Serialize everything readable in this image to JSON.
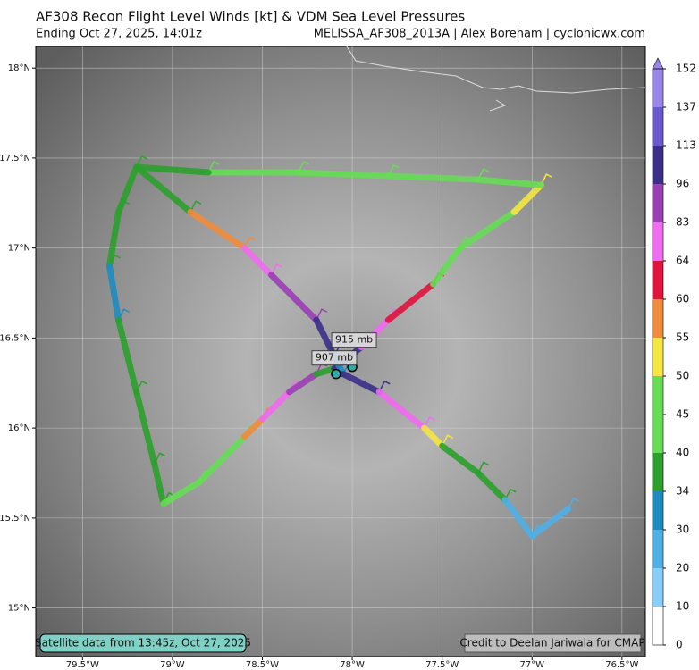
{
  "chart_data": {
    "type": "track",
    "title": "AF308 Recon Flight Level Winds [kt] & VDM Sea Level Pressures",
    "subtitle": "Ending Oct 27, 2025, 14:01z",
    "source": "MELISSA_AF308_2013A | Alex Boreham | cyclonicwx.com",
    "satellite_note": "Satellite data from 13:45z, Oct 27, 2025",
    "credit": "Credit to Deelan Jariwala for CMAP",
    "xlim": [
      -79.76,
      -76.37
    ],
    "ylim": [
      14.73,
      18.12
    ],
    "xticks": [
      {
        "value": -79.5,
        "label": "79.5°W"
      },
      {
        "value": -79,
        "label": "79°W"
      },
      {
        "value": -78.5,
        "label": "78.5°W"
      },
      {
        "value": -78,
        "label": "78°W"
      },
      {
        "value": -77.5,
        "label": "77.5°W"
      },
      {
        "value": -77,
        "label": "77°W"
      },
      {
        "value": -76.5,
        "label": "76.5°W"
      }
    ],
    "yticks": [
      {
        "value": 15,
        "label": "15°N"
      },
      {
        "value": 15.5,
        "label": "15.5°N"
      },
      {
        "value": 16,
        "label": "16°N"
      },
      {
        "value": 16.5,
        "label": "16.5°N"
      },
      {
        "value": 17,
        "label": "17°N"
      },
      {
        "value": 17.5,
        "label": "17.5°N"
      },
      {
        "value": 18,
        "label": "18°N"
      }
    ],
    "grid": true,
    "colorbar": {
      "ticks": [
        0,
        10,
        20,
        30,
        34,
        40,
        45,
        50,
        55,
        60,
        64,
        83,
        96,
        113,
        137,
        152
      ],
      "colors": [
        "#ffffff",
        "#87cefa",
        "#4fb0e6",
        "#1f8cc0",
        "#2ca02c",
        "#66dd55",
        "#66dd55",
        "#f5e642",
        "#f08c3c",
        "#e0143c",
        "#f06cf0",
        "#9b3fb5",
        "#3b2f8a",
        "#6a5acd",
        "#9a86e8"
      ]
    },
    "track": {
      "lon": [
        -79.2,
        -79.3,
        -79.35,
        -79.3,
        -79.2,
        -79.1,
        -79.05,
        -78.85,
        -78.6,
        -78.5,
        -78.35,
        -78.2,
        -78.1,
        -77.95,
        -77.8,
        -77.55,
        -77.4,
        -77.1,
        -76.95,
        -77.3,
        -77.8,
        -78.3,
        -78.8,
        -79.2,
        -78.9,
        -78.6,
        -78.45,
        -78.2,
        -78.1,
        -78.05,
        -77.85,
        -77.6,
        -77.5,
        -77.3,
        -77.15,
        -77.0,
        -76.8
      ],
      "lat": [
        17.45,
        17.2,
        16.9,
        16.6,
        16.2,
        15.8,
        15.58,
        15.7,
        15.95,
        16.05,
        16.2,
        16.3,
        16.33,
        16.45,
        16.6,
        16.8,
        17.0,
        17.2,
        17.35,
        17.38,
        17.4,
        17.42,
        17.42,
        17.45,
        17.2,
        17.0,
        16.85,
        16.6,
        16.4,
        16.3,
        16.2,
        16.0,
        15.9,
        15.75,
        15.6,
        15.4,
        15.55
      ],
      "kt": [
        40,
        35,
        38,
        32,
        38,
        36,
        36,
        42,
        44,
        58,
        70,
        90,
        35,
        100,
        75,
        62,
        44,
        42,
        52,
        48,
        42,
        41,
        40,
        38,
        36,
        58,
        66,
        85,
        110,
        30,
        100,
        70,
        52,
        38,
        34,
        22,
        20
      ]
    },
    "vdm": [
      {
        "label": "915 mb",
        "lon": -78.0,
        "lat": 16.34
      },
      {
        "label": "907 mb",
        "lon": -78.09,
        "lat": 16.3
      }
    ]
  }
}
